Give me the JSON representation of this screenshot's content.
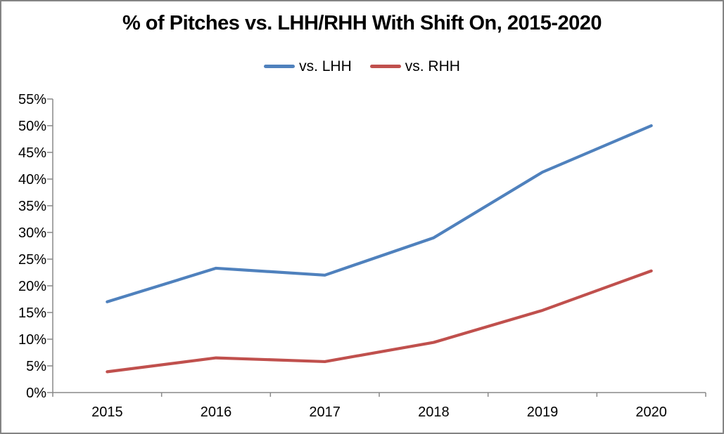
{
  "title": "% of Pitches vs. LHH/RHH With Shift On, 2015-2020",
  "legend": [
    {
      "label": "vs. LHH",
      "color": "#4F81BD",
      "icon": "line-swatch"
    },
    {
      "label": "vs. RHH",
      "color": "#C0504D",
      "icon": "line-swatch"
    }
  ],
  "chart_data": {
    "type": "line",
    "title": "% of Pitches vs. LHH/RHH With Shift On, 2015-2020",
    "categories": [
      "2015",
      "2016",
      "2017",
      "2018",
      "2019",
      "2020"
    ],
    "series": [
      {
        "name": "vs. LHH",
        "color": "#4F81BD",
        "values": [
          17.0,
          23.3,
          22.0,
          29.0,
          41.3,
          50.0
        ]
      },
      {
        "name": "vs. RHH",
        "color": "#C0504D",
        "values": [
          3.9,
          6.5,
          5.8,
          9.4,
          15.4,
          22.8
        ]
      }
    ],
    "xlabel": "",
    "ylabel": "",
    "ylim": [
      0,
      55
    ],
    "ytick_step": 5,
    "ytick_suffix": "%",
    "grid": false,
    "legend_position": "top"
  },
  "colors": {
    "axis": "#898989",
    "border": "#848484",
    "text": "#000000",
    "background": "#FFFFFF"
  }
}
